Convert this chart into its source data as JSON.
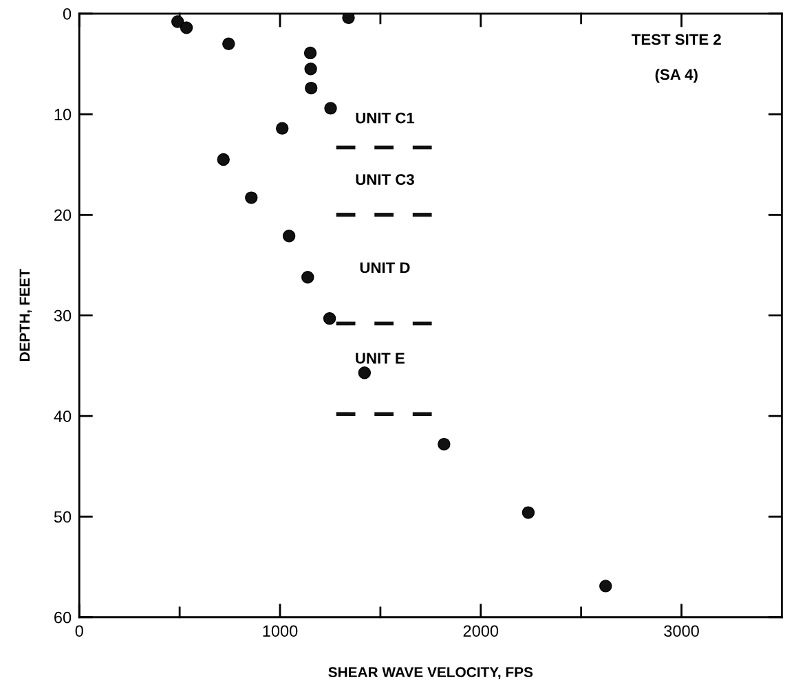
{
  "chart_data": {
    "type": "scatter",
    "xlabel": "SHEAR WAVE VELOCITY, FPS",
    "ylabel": "DEPTH, FEET",
    "xlim": [
      0,
      3500
    ],
    "ylim": [
      60,
      0
    ],
    "xticks": [
      0,
      {
        "value": 500,
        "label": null
      },
      1000,
      {
        "value": 1500,
        "label": null
      },
      2000,
      {
        "value": 2500,
        "label": null
      },
      3000
    ],
    "yticks": [
      0,
      10,
      20,
      30,
      40,
      50,
      60
    ],
    "marker": "circle",
    "grid": false,
    "legend": false,
    "series": [
      {
        "color": "#111111",
        "x": [
          490,
          534,
          744,
          1341,
          1151,
          1153,
          1155,
          1252,
          1011,
          718,
          857,
          1045,
          1138,
          1247,
          1421,
          1817,
          2237,
          2622
        ],
        "values": [
          0.8,
          1.4,
          3.0,
          0.4,
          3.9,
          5.5,
          7.4,
          9.4,
          11.4,
          14.5,
          18.3,
          22.1,
          26.2,
          30.3,
          35.7,
          42.8,
          49.6,
          56.9
        ]
      },
      {
        "type": "line",
        "color": "#111111",
        "line_style": "dashed",
        "marker": "none",
        "x": [
          1280,
          1780
        ],
        "values": [
          13.3,
          13.3
        ]
      },
      {
        "type": "line",
        "color": "#111111",
        "line_style": "dashed",
        "marker": "none",
        "x": [
          1280,
          1780
        ],
        "values": [
          20.0,
          20.0
        ]
      },
      {
        "type": "line",
        "color": "#111111",
        "line_style": "dashed",
        "marker": "none",
        "x": [
          1280,
          1780
        ],
        "values": [
          30.8,
          30.8
        ]
      },
      {
        "type": "line",
        "color": "#111111",
        "line_style": "dashed",
        "marker": "none",
        "x": [
          1280,
          1780
        ],
        "values": [
          39.8,
          39.8
        ]
      }
    ],
    "annotations": [
      "TEST SITE 2",
      "(SA 4)",
      "UNIT C1",
      "UNIT C3",
      "UNIT D",
      "UNIT E"
    ]
  }
}
